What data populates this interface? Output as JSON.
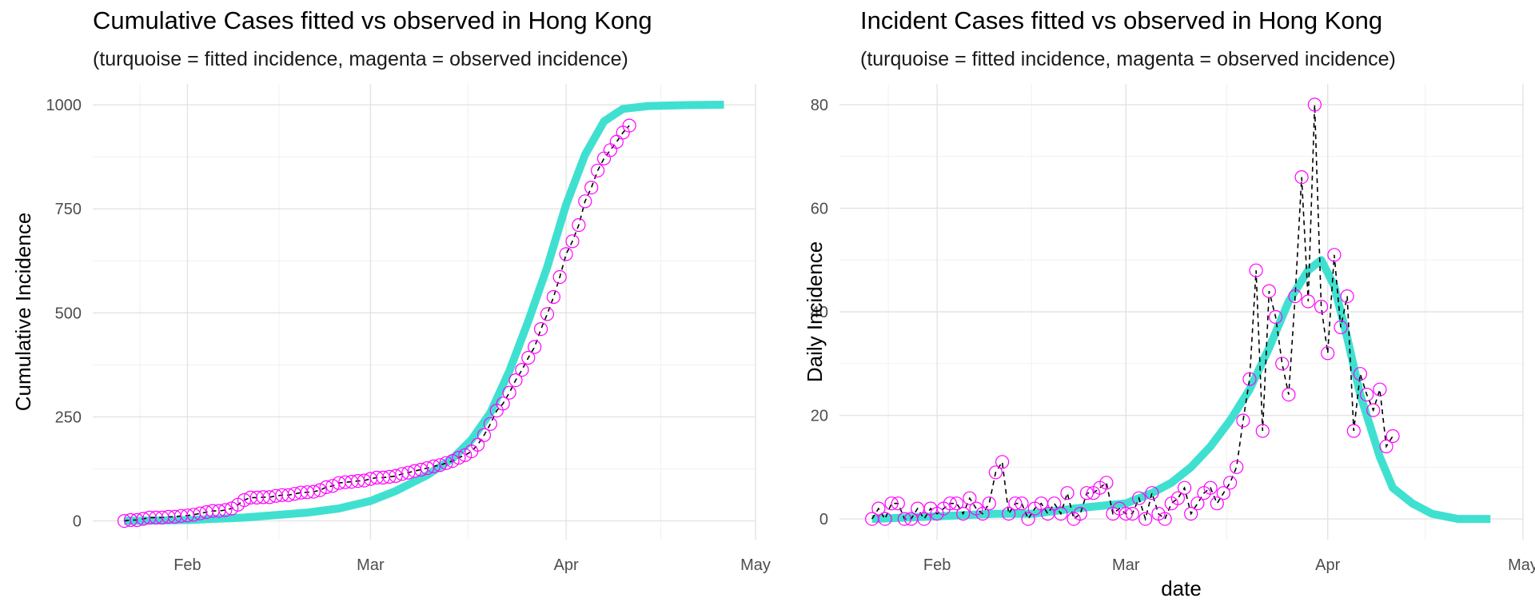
{
  "chart_data": [
    {
      "type": "line",
      "title": "Cumulative Cases fitted vs observed in Hong Kong",
      "subtitle": "(turquoise = fitted incidence, magenta = observed incidence)",
      "xlabel": "",
      "ylabel": "Cumulative Incidence",
      "x_ticks": [
        "Feb",
        "Mar",
        "Apr",
        "May"
      ],
      "x_tick_dates": [
        "2020-02-01",
        "2020-03-01",
        "2020-04-01",
        "2020-05-01"
      ],
      "y_ticks": [
        0,
        250,
        500,
        750,
        1000
      ],
      "xlim": [
        "2020-01-17",
        "2020-05-01"
      ],
      "ylim": [
        -45,
        1050
      ],
      "grid": true,
      "series": [
        {
          "style": "fitted",
          "color": "#40E0D0",
          "x": [
            "2020-01-22",
            "2020-02-01",
            "2020-02-10",
            "2020-02-20",
            "2020-02-25",
            "2020-03-01",
            "2020-03-05",
            "2020-03-10",
            "2020-03-14",
            "2020-03-17",
            "2020-03-20",
            "2020-03-23",
            "2020-03-26",
            "2020-03-29",
            "2020-04-01",
            "2020-04-04",
            "2020-04-07",
            "2020-04-10",
            "2020-04-14",
            "2020-04-20",
            "2020-04-26"
          ],
          "y": [
            0,
            2,
            8,
            20,
            30,
            48,
            72,
            110,
            150,
            195,
            260,
            360,
            480,
            610,
            760,
            880,
            960,
            990,
            997,
            999,
            1000
          ]
        },
        {
          "style": "observed",
          "color": "#FF00FF",
          "x": [
            "2020-01-22",
            "2020-01-23",
            "2020-01-24",
            "2020-01-25",
            "2020-01-26",
            "2020-01-27",
            "2020-01-28",
            "2020-01-29",
            "2020-01-30",
            "2020-01-31",
            "2020-02-01",
            "2020-02-02",
            "2020-02-03",
            "2020-02-04",
            "2020-02-05",
            "2020-02-06",
            "2020-02-07",
            "2020-02-08",
            "2020-02-09",
            "2020-02-10",
            "2020-02-11",
            "2020-02-12",
            "2020-02-13",
            "2020-02-14",
            "2020-02-15",
            "2020-02-16",
            "2020-02-17",
            "2020-02-18",
            "2020-02-19",
            "2020-02-20",
            "2020-02-21",
            "2020-02-22",
            "2020-02-23",
            "2020-02-24",
            "2020-02-25",
            "2020-02-26",
            "2020-02-27",
            "2020-02-28",
            "2020-02-29",
            "2020-03-01",
            "2020-03-02",
            "2020-03-03",
            "2020-03-04",
            "2020-03-05",
            "2020-03-06",
            "2020-03-07",
            "2020-03-08",
            "2020-03-09",
            "2020-03-10",
            "2020-03-11",
            "2020-03-12",
            "2020-03-13",
            "2020-03-14",
            "2020-03-15",
            "2020-03-16",
            "2020-03-17",
            "2020-03-18",
            "2020-03-19",
            "2020-03-20",
            "2020-03-21",
            "2020-03-22",
            "2020-03-23",
            "2020-03-24",
            "2020-03-25",
            "2020-03-26",
            "2020-03-27",
            "2020-03-28",
            "2020-03-29",
            "2020-03-30",
            "2020-03-31",
            "2020-04-01",
            "2020-04-02",
            "2020-04-03",
            "2020-04-04",
            "2020-04-05",
            "2020-04-06",
            "2020-04-07",
            "2020-04-08",
            "2020-04-09",
            "2020-04-10",
            "2020-04-11"
          ],
          "y": [
            0,
            2,
            2,
            5,
            8,
            8,
            8,
            10,
            10,
            12,
            13,
            15,
            18,
            21,
            24,
            24,
            26,
            30,
            39,
            50,
            56,
            56,
            57,
            57,
            60,
            62,
            62,
            65,
            68,
            69,
            70,
            74,
            81,
            84,
            91,
            93,
            94,
            96,
            97,
            101,
            104,
            104,
            106,
            108,
            113,
            116,
            120,
            123,
            127,
            131,
            134,
            139,
            144,
            152,
            158,
            167,
            183,
            206,
            233,
            265,
            282,
            308,
            338,
            363,
            392,
            418,
            461,
            497,
            538,
            586,
            641,
            672,
            711,
            768,
            801,
            842,
            871,
            891,
            911,
            933,
            950
          ]
        }
      ]
    },
    {
      "type": "line",
      "title": "Incident Cases fitted vs observed in Hong Kong",
      "subtitle": "(turquoise = fitted incidence, magenta = observed incidence)",
      "xlabel": "date",
      "ylabel": "Daily Incidence",
      "x_ticks": [
        "Feb",
        "Mar",
        "Apr",
        "May"
      ],
      "x_tick_dates": [
        "2020-02-01",
        "2020-03-01",
        "2020-04-01",
        "2020-05-01"
      ],
      "y_ticks": [
        0,
        20,
        40,
        60,
        80
      ],
      "xlim": [
        "2020-01-17",
        "2020-05-01"
      ],
      "ylim": [
        -4,
        84
      ],
      "grid": true,
      "series": [
        {
          "style": "fitted",
          "color": "#40E0D0",
          "x": [
            "2020-01-22",
            "2020-02-01",
            "2020-02-10",
            "2020-02-16",
            "2020-02-22",
            "2020-03-01",
            "2020-03-05",
            "2020-03-08",
            "2020-03-11",
            "2020-03-14",
            "2020-03-17",
            "2020-03-20",
            "2020-03-23",
            "2020-03-26",
            "2020-03-29",
            "2020-03-31",
            "2020-04-02",
            "2020-04-04",
            "2020-04-06",
            "2020-04-09",
            "2020-04-11",
            "2020-04-14",
            "2020-04-17",
            "2020-04-21",
            "2020-04-26"
          ],
          "y": [
            0,
            0.5,
            1,
            1,
            2,
            3,
            5,
            7,
            10,
            14,
            19,
            25,
            33,
            42,
            48,
            50,
            45,
            35,
            24,
            12,
            6,
            3,
            1,
            0,
            0
          ]
        },
        {
          "style": "observed",
          "color": "#FF00FF",
          "x": [
            "2020-01-22",
            "2020-01-23",
            "2020-01-24",
            "2020-01-25",
            "2020-01-26",
            "2020-01-27",
            "2020-01-28",
            "2020-01-29",
            "2020-01-30",
            "2020-01-31",
            "2020-02-01",
            "2020-02-02",
            "2020-02-03",
            "2020-02-04",
            "2020-02-05",
            "2020-02-06",
            "2020-02-07",
            "2020-02-08",
            "2020-02-09",
            "2020-02-10",
            "2020-02-11",
            "2020-02-12",
            "2020-02-13",
            "2020-02-14",
            "2020-02-15",
            "2020-02-16",
            "2020-02-17",
            "2020-02-18",
            "2020-02-19",
            "2020-02-20",
            "2020-02-21",
            "2020-02-22",
            "2020-02-23",
            "2020-02-24",
            "2020-02-25",
            "2020-02-26",
            "2020-02-27",
            "2020-02-28",
            "2020-02-29",
            "2020-03-01",
            "2020-03-02",
            "2020-03-03",
            "2020-03-04",
            "2020-03-05",
            "2020-03-06",
            "2020-03-07",
            "2020-03-08",
            "2020-03-09",
            "2020-03-10",
            "2020-03-11",
            "2020-03-12",
            "2020-03-13",
            "2020-03-14",
            "2020-03-15",
            "2020-03-16",
            "2020-03-17",
            "2020-03-18",
            "2020-03-19",
            "2020-03-20",
            "2020-03-21",
            "2020-03-22",
            "2020-03-23",
            "2020-03-24",
            "2020-03-25",
            "2020-03-26",
            "2020-03-27",
            "2020-03-28",
            "2020-03-29",
            "2020-03-30",
            "2020-03-31",
            "2020-04-01",
            "2020-04-02",
            "2020-04-03",
            "2020-04-04",
            "2020-04-05",
            "2020-04-06",
            "2020-04-07",
            "2020-04-08",
            "2020-04-09",
            "2020-04-10",
            "2020-04-11"
          ],
          "y": [
            0,
            2,
            0,
            3,
            3,
            0,
            0,
            2,
            0,
            2,
            1,
            2,
            3,
            3,
            1,
            4,
            2,
            1,
            3,
            9,
            11,
            1,
            3,
            3,
            0,
            2,
            3,
            1,
            3,
            1,
            5,
            0,
            1,
            5,
            5,
            6,
            7,
            1,
            2,
            1,
            1,
            4,
            0,
            5,
            1,
            0,
            3,
            4,
            6,
            1,
            3,
            5,
            6,
            3,
            5,
            7,
            10,
            19,
            27,
            48,
            17,
            44,
            39,
            30,
            24,
            43,
            66,
            42,
            80,
            41,
            32,
            51,
            37,
            43,
            17,
            28,
            24,
            21,
            25,
            14,
            16
          ]
        }
      ]
    }
  ]
}
